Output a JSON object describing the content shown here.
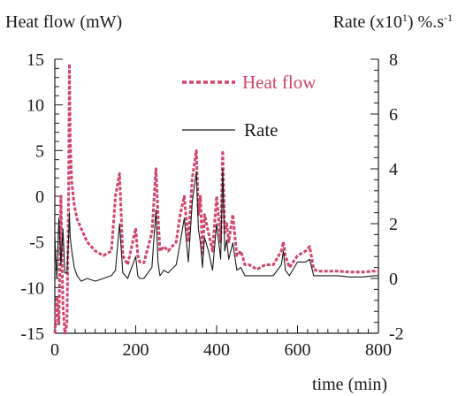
{
  "chart_data": {
    "type": "line",
    "y_left_label": "Heat flow (mW)",
    "y_right_label": "Rate (x10¹) %.s⁻¹",
    "xlabel": "time (min)",
    "xlim": [
      0,
      800
    ],
    "ylim_left": [
      -15,
      15
    ],
    "ylim_right": [
      -2,
      8
    ],
    "x_ticks": [
      "0",
      "200",
      "400",
      "600",
      "800"
    ],
    "y_left_ticks": [
      "15",
      "10",
      "5",
      "0",
      "-5",
      "-10",
      "-15"
    ],
    "y_right_ticks": [
      "8",
      "6",
      "4",
      "2",
      "0",
      "-2"
    ],
    "grid": false,
    "legend_position": "top-right",
    "series": [
      {
        "name": "Heat flow",
        "axis": "left",
        "color": "#d0456b",
        "style": "dashed",
        "x": [
          0,
          5,
          10,
          15,
          20,
          25,
          30,
          34,
          36,
          38,
          42,
          48,
          55,
          65,
          80,
          100,
          120,
          140,
          150,
          160,
          168,
          180,
          200,
          205,
          210,
          220,
          240,
          250,
          255,
          260,
          270,
          280,
          300,
          310,
          320,
          330,
          340,
          350,
          355,
          360,
          365,
          370,
          380,
          390,
          400,
          410,
          415,
          420,
          425,
          430,
          440,
          450,
          460,
          470,
          480,
          500,
          520,
          540,
          560,
          565,
          570,
          580,
          600,
          620,
          630,
          640,
          650,
          670,
          700,
          730,
          760,
          790,
          800
        ],
        "y": [
          -15,
          -11,
          -14,
          0,
          -12,
          -15,
          -14,
          0,
          14.5,
          6,
          1.5,
          -1,
          -2.5,
          -3.5,
          -5,
          -6,
          -6.5,
          -6,
          0,
          2.5,
          -6.5,
          -7.5,
          -3.5,
          -6.5,
          -7.2,
          -7.3,
          -4,
          3,
          -2,
          -6,
          -5.5,
          -6,
          -5,
          -2,
          0,
          -5,
          2,
          5,
          -2,
          0,
          -6.5,
          -2,
          -4,
          -6,
          0,
          -5,
          5,
          -4,
          -3,
          -5,
          -2,
          -6.5,
          -6,
          -7.5,
          -7.5,
          -8,
          -7.5,
          -7.5,
          -6,
          -5,
          -6.5,
          -7.8,
          -6.5,
          -6,
          -5.5,
          -8,
          -8.2,
          -8.2,
          -8.2,
          -8.3,
          -8.3,
          -8.2,
          -8.2
        ]
      },
      {
        "name": "Rate",
        "axis": "right",
        "color": "#1a1a1a",
        "style": "solid",
        "x": [
          0,
          5,
          10,
          15,
          20,
          25,
          30,
          34,
          36,
          38,
          42,
          48,
          55,
          65,
          80,
          100,
          120,
          140,
          150,
          160,
          168,
          180,
          200,
          205,
          210,
          220,
          240,
          250,
          255,
          260,
          270,
          280,
          300,
          310,
          320,
          330,
          340,
          350,
          355,
          360,
          365,
          370,
          380,
          390,
          400,
          410,
          415,
          420,
          425,
          430,
          440,
          450,
          460,
          470,
          480,
          500,
          520,
          540,
          560,
          565,
          570,
          580,
          600,
          620,
          630,
          640,
          650,
          670,
          700,
          730,
          760,
          790,
          800
        ],
        "y": [
          1.5,
          0,
          2.2,
          0.5,
          1.8,
          0.2,
          0.2,
          1.5,
          2.4,
          1.5,
          1,
          0.4,
          0.1,
          -0.1,
          0,
          -0.1,
          0,
          0.1,
          0.3,
          2,
          0.2,
          0,
          0.8,
          0.1,
          0,
          0,
          0.4,
          2.5,
          0.6,
          0.1,
          0.3,
          0.2,
          0.5,
          1.3,
          2.2,
          0.6,
          2.8,
          3.9,
          1.8,
          1.3,
          0.4,
          1.5,
          1,
          0.3,
          2,
          0.7,
          4,
          1,
          1.4,
          0.7,
          1.3,
          0.3,
          0.4,
          0.1,
          0.1,
          0.1,
          0.1,
          0.1,
          0.5,
          1,
          0.3,
          0.1,
          0.6,
          0.6,
          0.7,
          0.1,
          0.1,
          0.1,
          0.1,
          0.05,
          0.05,
          0.1,
          0.1
        ]
      }
    ]
  }
}
